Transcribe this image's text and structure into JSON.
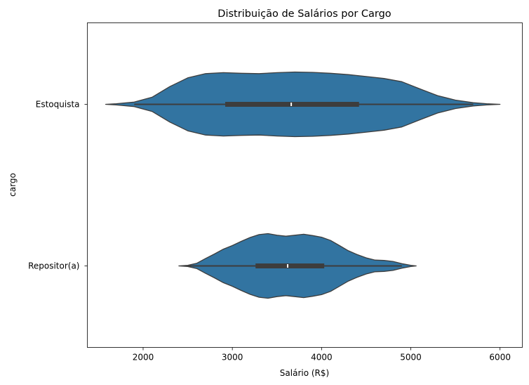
{
  "chart_data": {
    "type": "violin",
    "orientation": "horizontal",
    "title": "Distribuição de Salários por Cargo",
    "xlabel": "Salário (R$)",
    "ylabel": "cargo",
    "xlim": [
      1375,
      6250
    ],
    "xticks": [
      2000,
      3000,
      4000,
      5000,
      6000
    ],
    "xtick_labels": [
      "2000",
      "3000",
      "4000",
      "5000",
      "6000"
    ],
    "grid": false,
    "legend": "none",
    "color": "#3274a1",
    "edge_color": "#3d3d3d",
    "categories": [
      "Estoquista",
      "Repositor(a)"
    ],
    "violins": [
      {
        "category": "Estoquista",
        "box": {
          "q1": 2920,
          "median": 3660,
          "q3": 4420,
          "whisker_low": 1900,
          "whisker_high": 5700
        },
        "range": [
          1580,
          6000
        ],
        "density": [
          [
            1580,
            0.0
          ],
          [
            1700,
            0.02
          ],
          [
            1900,
            0.07
          ],
          [
            2100,
            0.22
          ],
          [
            2300,
            0.55
          ],
          [
            2500,
            0.82
          ],
          [
            2700,
            0.95
          ],
          [
            2900,
            0.98
          ],
          [
            3100,
            0.96
          ],
          [
            3300,
            0.95
          ],
          [
            3500,
            0.98
          ],
          [
            3700,
            1.0
          ],
          [
            3900,
            0.99
          ],
          [
            4100,
            0.96
          ],
          [
            4300,
            0.92
          ],
          [
            4500,
            0.86
          ],
          [
            4700,
            0.8
          ],
          [
            4900,
            0.7
          ],
          [
            5100,
            0.48
          ],
          [
            5300,
            0.27
          ],
          [
            5500,
            0.13
          ],
          [
            5700,
            0.05
          ],
          [
            5850,
            0.02
          ],
          [
            6000,
            0.0
          ]
        ]
      },
      {
        "category": "Repositor(a)",
        "box": {
          "q1": 3260,
          "median": 3620,
          "q3": 4030,
          "whisker_low": 2450,
          "whisker_high": 4900
        },
        "range": [
          2400,
          5060
        ],
        "density": [
          [
            2400,
            0.0
          ],
          [
            2500,
            0.02
          ],
          [
            2600,
            0.08
          ],
          [
            2700,
            0.23
          ],
          [
            2800,
            0.37
          ],
          [
            2900,
            0.52
          ],
          [
            3000,
            0.63
          ],
          [
            3100,
            0.76
          ],
          [
            3200,
            0.88
          ],
          [
            3300,
            0.97
          ],
          [
            3400,
            1.0
          ],
          [
            3500,
            0.95
          ],
          [
            3600,
            0.92
          ],
          [
            3700,
            0.95
          ],
          [
            3800,
            0.98
          ],
          [
            3900,
            0.94
          ],
          [
            4000,
            0.89
          ],
          [
            4100,
            0.79
          ],
          [
            4200,
            0.63
          ],
          [
            4300,
            0.47
          ],
          [
            4400,
            0.35
          ],
          [
            4500,
            0.25
          ],
          [
            4600,
            0.18
          ],
          [
            4700,
            0.17
          ],
          [
            4800,
            0.14
          ],
          [
            4900,
            0.07
          ],
          [
            5000,
            0.02
          ],
          [
            5060,
            0.0
          ]
        ]
      }
    ]
  }
}
